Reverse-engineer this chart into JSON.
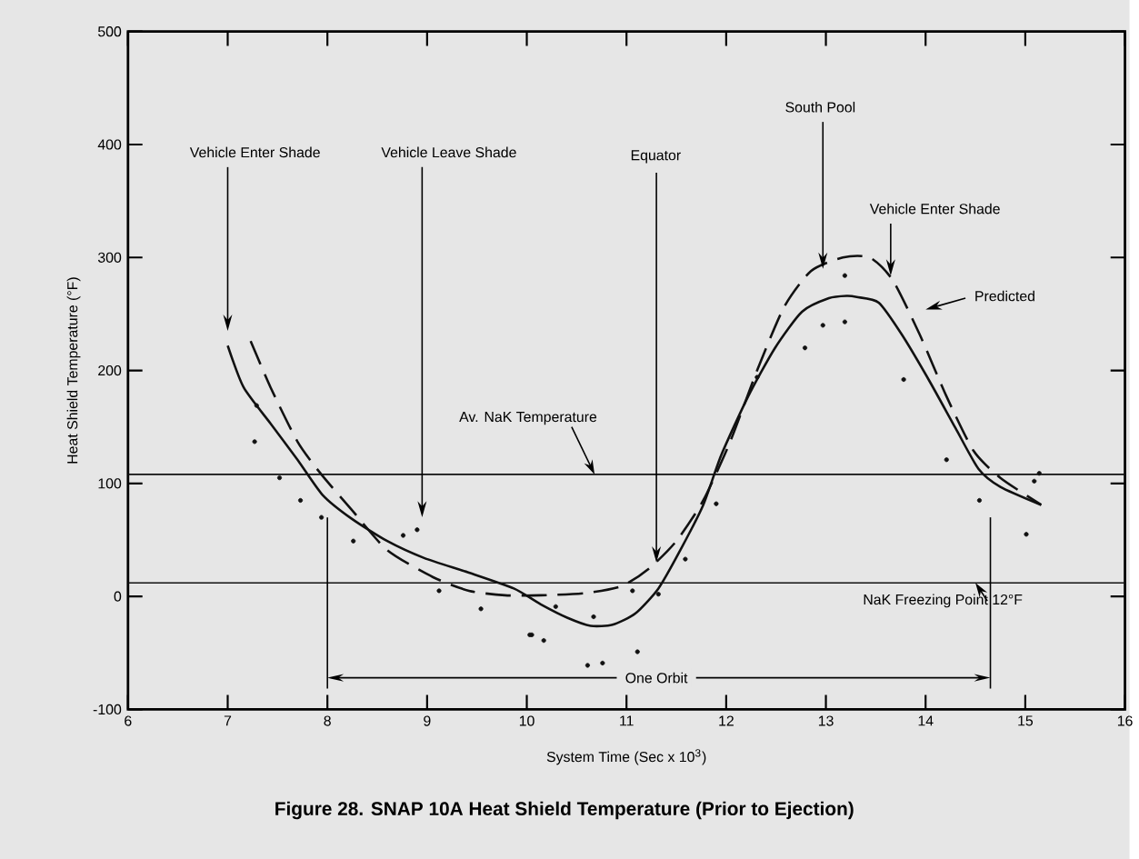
{
  "chart_data": {
    "type": "line",
    "title": "Figure 28.  SNAP 10A Heat Shield Temperature (Prior to Ejection)",
    "xlabel": "System Time (Sec x 10$^{3}$)",
    "ylabel": "Heat Shield Temperature (°F)",
    "xlim": [
      6,
      16
    ],
    "ylim": [
      -100,
      500
    ],
    "xticks": [
      6,
      7,
      8,
      9,
      10,
      11,
      12,
      13,
      14,
      15,
      16
    ],
    "yticks": [
      -100,
      0,
      100,
      200,
      300,
      400,
      500
    ],
    "grid": false,
    "series": [
      {
        "color": "#111111",
        "line_style": "solid",
        "x": [
          7.0,
          7.16,
          7.43,
          7.7,
          7.95,
          8.24,
          8.6,
          8.97,
          9.42,
          9.87,
          10.14,
          10.41,
          10.64,
          10.86,
          11.09,
          11.32,
          11.54,
          11.77,
          11.95,
          12.22,
          12.49,
          12.76,
          13.03,
          13.21,
          13.31,
          13.53,
          13.76,
          14.03,
          14.3,
          14.53,
          14.75,
          15.16
        ],
        "values": [
          222,
          185,
          153,
          121,
          90,
          69,
          49,
          34,
          21,
          7,
          -7,
          -19,
          -26,
          -25,
          -15,
          7,
          41,
          81,
          125,
          177,
          220,
          252,
          264,
          266,
          265,
          260,
          232,
          192,
          149,
          113,
          97,
          81
        ]
      },
      {
        "type": "line",
        "color": "#111111",
        "line_style": "dashed",
        "x": [
          7.23,
          7.43,
          7.7,
          7.93,
          8.24,
          8.6,
          9.06,
          9.42,
          9.78,
          10.14,
          10.59,
          10.95,
          11.23,
          11.5,
          11.77,
          12.04,
          12.31,
          12.58,
          12.85,
          13.17,
          13.44,
          13.67,
          13.94,
          14.21,
          14.48,
          14.75,
          15.16
        ],
        "values": [
          226,
          185,
          137,
          109,
          77,
          41,
          17,
          5,
          1,
          1,
          3,
          9,
          25,
          49,
          85,
          137,
          200,
          256,
          288,
          300,
          300,
          280,
          232,
          177,
          129,
          105,
          81
        ]
      },
      {
        "type": "scatter",
        "color": "#111111",
        "marker": "circle",
        "x": [
          7.27,
          7.29,
          7.52,
          7.73,
          7.94,
          8.26,
          8.76,
          8.9,
          9.12,
          9.54,
          10.05,
          10.29,
          10.03,
          10.17,
          10.61,
          10.76,
          11.11,
          10.67,
          11.06,
          11.32,
          11.59,
          11.9,
          12.31,
          12.79,
          13.19,
          13.19,
          12.97,
          13.78,
          14.21,
          14.54,
          15.01,
          15.09,
          15.14
        ],
        "values": [
          137,
          169,
          105,
          85,
          70,
          49,
          54,
          59,
          5,
          -11,
          -34,
          -9,
          -34,
          -39,
          -61,
          -59,
          -49,
          -18,
          5,
          2,
          33,
          82,
          194,
          220,
          284,
          243,
          240,
          192,
          121,
          85,
          55,
          102,
          109
        ]
      }
    ],
    "ref_lines": [
      {
        "axis": "y",
        "value": 108,
        "label": "Av. NaK Temperature",
        "color": "#111111"
      },
      {
        "axis": "y",
        "value": 12,
        "label": "NaK Freezing Point 12°F",
        "color": "#111111"
      }
    ],
    "annotations": [
      "Vehicle Enter Shade",
      "Vehicle Leave Shade",
      "Equator",
      "South Pool",
      "Vehicle Enter Shade",
      "Predicted",
      "One Orbit"
    ]
  }
}
